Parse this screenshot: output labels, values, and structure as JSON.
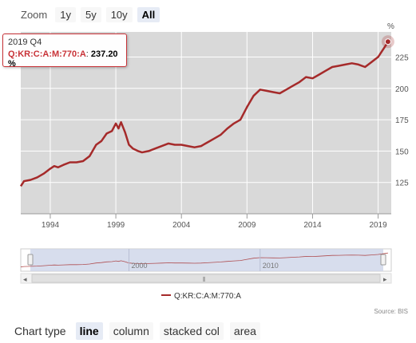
{
  "zoom": {
    "label": "Zoom",
    "buttons": [
      "1y",
      "5y",
      "10y",
      "All"
    ],
    "active": "All"
  },
  "tooltip": {
    "date": "2019 Q4",
    "series": "Q:KR:C:A:M:770:A",
    "value": "237.20 %"
  },
  "legend": {
    "label": "Q:KR:C:A:M:770:A"
  },
  "source": "Source: BIS",
  "chart_type": {
    "label": "Chart type",
    "options": [
      "line",
      "column",
      "stacked col",
      "area"
    ],
    "active": "line"
  },
  "colors": {
    "line": "#a52a2a",
    "plot_bg": "#d9d9d9",
    "navigator_fill": "#cdd5e8"
  },
  "chart_data": {
    "type": "line",
    "title": "",
    "xlabel": "",
    "ylabel": "%",
    "xlim": [
      1991.75,
      2020.0
    ],
    "ylim": [
      100,
      245
    ],
    "xticks": [
      "1994",
      "1999",
      "2004",
      "2009",
      "2014",
      "2019"
    ],
    "yticks": [
      "125",
      "150",
      "175",
      "200",
      "225"
    ],
    "navigator_ticks": [
      "2000",
      "2010"
    ],
    "grid": true,
    "legend_position": "bottom-center",
    "series": [
      {
        "name": "Q:KR:C:A:M:770:A",
        "points": [
          [
            1991.75,
            122
          ],
          [
            1992.0,
            126
          ],
          [
            1992.5,
            127
          ],
          [
            1993.0,
            129
          ],
          [
            1993.5,
            132
          ],
          [
            1994.0,
            136
          ],
          [
            1994.3,
            138
          ],
          [
            1994.6,
            137
          ],
          [
            1995.0,
            139
          ],
          [
            1995.5,
            141
          ],
          [
            1996.0,
            141
          ],
          [
            1996.5,
            142
          ],
          [
            1997.0,
            146
          ],
          [
            1997.5,
            155
          ],
          [
            1997.9,
            158
          ],
          [
            1998.3,
            164
          ],
          [
            1998.7,
            166
          ],
          [
            1999.0,
            172
          ],
          [
            1999.2,
            168
          ],
          [
            1999.4,
            173
          ],
          [
            1999.7,
            165
          ],
          [
            2000.0,
            155
          ],
          [
            2000.3,
            152
          ],
          [
            2000.7,
            150
          ],
          [
            2001.0,
            149
          ],
          [
            2001.5,
            150
          ],
          [
            2002.0,
            152
          ],
          [
            2002.5,
            154
          ],
          [
            2003.0,
            156
          ],
          [
            2003.5,
            155
          ],
          [
            2004.0,
            155
          ],
          [
            2004.5,
            154
          ],
          [
            2005.0,
            153
          ],
          [
            2005.5,
            154
          ],
          [
            2006.0,
            157
          ],
          [
            2006.5,
            160
          ],
          [
            2007.0,
            163
          ],
          [
            2007.5,
            168
          ],
          [
            2008.0,
            172
          ],
          [
            2008.5,
            175
          ],
          [
            2009.0,
            185
          ],
          [
            2009.5,
            194
          ],
          [
            2010.0,
            199
          ],
          [
            2010.5,
            198
          ],
          [
            2011.0,
            197
          ],
          [
            2011.5,
            196
          ],
          [
            2012.0,
            199
          ],
          [
            2012.5,
            202
          ],
          [
            2013.0,
            205
          ],
          [
            2013.5,
            209
          ],
          [
            2014.0,
            208
          ],
          [
            2014.5,
            211
          ],
          [
            2015.0,
            214
          ],
          [
            2015.5,
            217
          ],
          [
            2016.0,
            218
          ],
          [
            2016.5,
            219
          ],
          [
            2017.0,
            220
          ],
          [
            2017.5,
            219
          ],
          [
            2018.0,
            217
          ],
          [
            2018.5,
            221
          ],
          [
            2019.0,
            225
          ],
          [
            2019.25,
            229
          ],
          [
            2019.5,
            233
          ],
          [
            2019.75,
            237.2
          ]
        ]
      }
    ]
  }
}
